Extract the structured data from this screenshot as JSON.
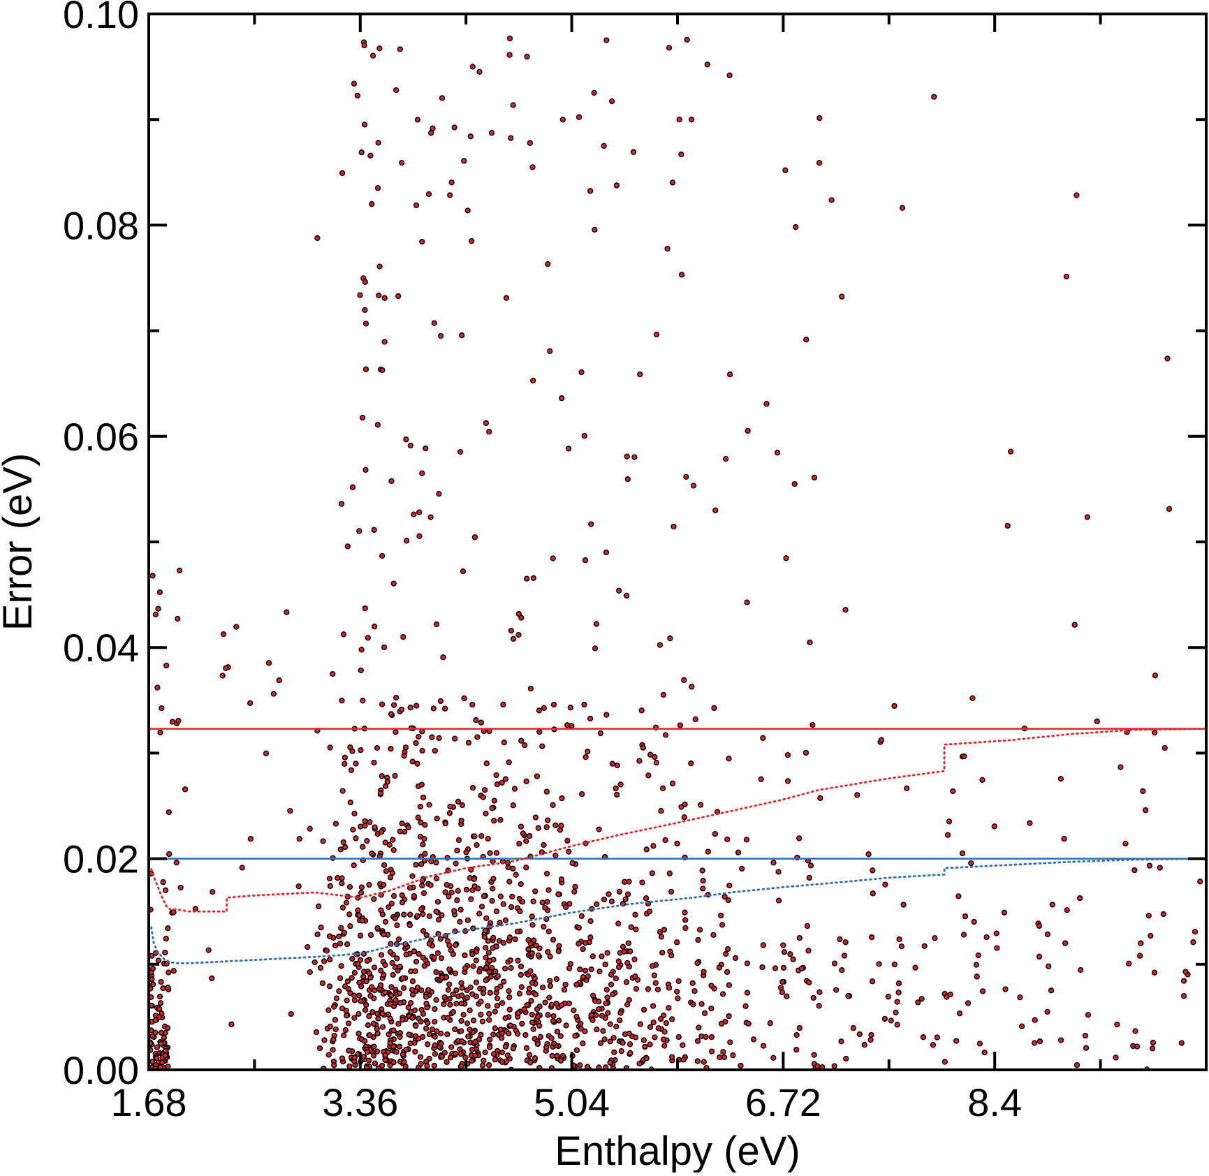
{
  "chart_data": {
    "type": "scatter",
    "title": "",
    "xlabel": "Enthalpy (eV)",
    "ylabel": "Error (eV)",
    "xlim": [
      1.68,
      10.08
    ],
    "ylim": [
      0.0,
      0.1
    ],
    "grid": false,
    "legend": "none",
    "x_ticks": [
      "1.68",
      "3.36",
      "5.04",
      "6.72",
      "8.4"
    ],
    "x_tick_values": [
      1.68,
      3.36,
      5.04,
      6.72,
      8.4
    ],
    "x_minor_tick_values": [
      2.52,
      4.2,
      5.88,
      7.56,
      9.24
    ],
    "y_ticks": [
      "0.00",
      "0.02",
      "0.04",
      "0.06",
      "0.08",
      "0.10"
    ],
    "y_tick_values": [
      0.0,
      0.02,
      0.04,
      0.06,
      0.08,
      0.1
    ],
    "y_minor_tick_values": [
      0.01,
      0.03,
      0.05,
      0.07,
      0.09
    ],
    "colors": {
      "points": "#d8262b",
      "red_line": "#e0262b",
      "blue_line": "#2f6fb0"
    },
    "reference_lines": [
      {
        "y": 0.0323,
        "color": "#e0262b",
        "style": "solid"
      },
      {
        "y": 0.02,
        "color": "#2f6fb0",
        "style": "solid"
      }
    ],
    "curves": [
      {
        "color": "#e0262b",
        "style": "dotted",
        "x": [
          1.7,
          1.73,
          1.78,
          1.82,
          1.85,
          1.9,
          2.0,
          2.3,
          2.3,
          2.5,
          3.0,
          3.36,
          3.6,
          3.9,
          4.2,
          4.6,
          5.04,
          5.4,
          5.88,
          6.3,
          6.72,
          7.0,
          7.56,
          8.0,
          8.0,
          8.5,
          9.0,
          9.5,
          10.08
        ],
        "y": [
          0.019,
          0.018,
          0.0165,
          0.0155,
          0.0152,
          0.0152,
          0.015,
          0.015,
          0.0163,
          0.0165,
          0.0168,
          0.0163,
          0.017,
          0.0183,
          0.0191,
          0.0198,
          0.0212,
          0.0222,
          0.0234,
          0.0245,
          0.0256,
          0.0265,
          0.0276,
          0.0283,
          0.0308,
          0.0312,
          0.0318,
          0.0322,
          0.0323
        ]
      },
      {
        "color": "#2f6fb0",
        "style": "dotted",
        "x": [
          1.7,
          1.72,
          1.75,
          1.8,
          1.85,
          1.9,
          2.0,
          2.5,
          3.0,
          3.36,
          3.6,
          3.9,
          4.2,
          4.6,
          5.04,
          5.5,
          6.0,
          6.3,
          6.72,
          7.2,
          7.56,
          8.0,
          8.0,
          8.5,
          9.0,
          9.5,
          10.08
        ],
        "y": [
          0.0135,
          0.012,
          0.0112,
          0.0105,
          0.0102,
          0.0101,
          0.0101,
          0.0104,
          0.0107,
          0.011,
          0.0117,
          0.0125,
          0.0132,
          0.0139,
          0.0149,
          0.0157,
          0.0163,
          0.0168,
          0.0173,
          0.0178,
          0.0182,
          0.0185,
          0.0191,
          0.0194,
          0.0197,
          0.0199,
          0.02
        ]
      }
    ]
  }
}
